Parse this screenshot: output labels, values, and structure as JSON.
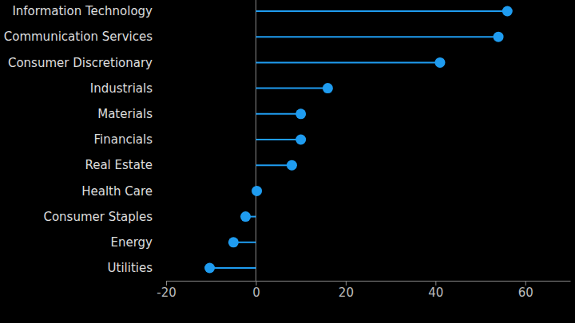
{
  "chart_data": {
    "type": "lollipop",
    "orientation": "horizontal",
    "categories": [
      "Information Technology",
      "Communication Services",
      "Consumer Discretionary",
      "Industrials",
      "Materials",
      "Financials",
      "Real Estate",
      "Health Care",
      "Consumer Staples",
      "Energy",
      "Utilities"
    ],
    "values": [
      56,
      54,
      41,
      16,
      10,
      10,
      8,
      0.2,
      -2.3,
      -5,
      -10.3
    ],
    "color": "#1f9cf0",
    "xlim": [
      -20,
      70
    ],
    "xticks": [
      -20,
      0,
      20,
      40,
      60
    ],
    "grid": false
  }
}
